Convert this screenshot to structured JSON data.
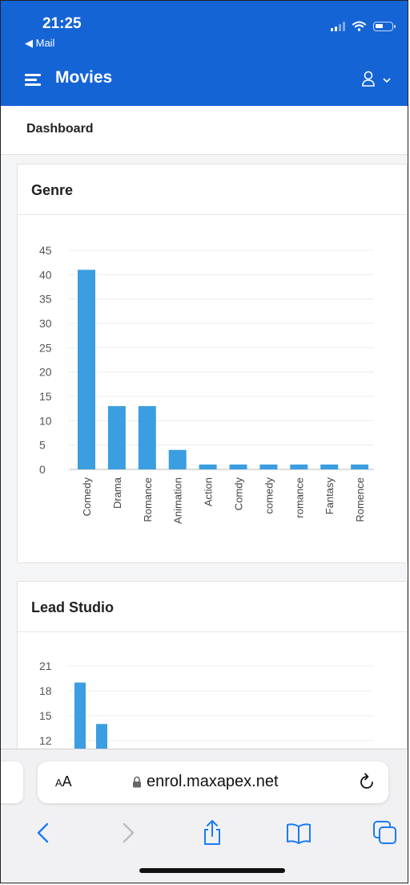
{
  "status_bar": {
    "time": "21:25",
    "back_label": "◀ Mail"
  },
  "app_bar": {
    "title": "Movies"
  },
  "page": {
    "title": "Dashboard"
  },
  "genre_card": {
    "title": "Genre"
  },
  "studio_card": {
    "title": "Lead Studio"
  },
  "browser": {
    "text_size_label": "AA",
    "url": "enrol.maxapex.net"
  },
  "colors": {
    "brand": "#1564d6",
    "bar": "#3a9ee0",
    "ios_blue": "#1a7cf4"
  },
  "icons": [
    "hamburger-icon",
    "user-icon",
    "chevron-down-icon",
    "lock-icon",
    "reload-icon",
    "back-icon",
    "forward-icon",
    "share-icon",
    "bookmarks-icon",
    "tabs-icon"
  ],
  "chart_data": [
    {
      "type": "bar",
      "title": "Genre",
      "categories": [
        "Comedy",
        "Drama",
        "Romance",
        "Animation",
        "Action",
        "Comdy",
        "comedy",
        "romance",
        "Fantasy",
        "Romence"
      ],
      "values": [
        41,
        13,
        13,
        4,
        1,
        1,
        1,
        1,
        1,
        1
      ],
      "ylim": [
        0,
        45
      ],
      "yticks": [
        0,
        5,
        10,
        15,
        20,
        25,
        30,
        35,
        40,
        45
      ],
      "grid": true
    },
    {
      "type": "bar",
      "title": "Lead Studio",
      "values": [
        19,
        14
      ],
      "ylim": [
        0,
        21
      ],
      "yticks_visible": [
        21,
        18,
        15,
        12
      ],
      "grid": true
    }
  ]
}
